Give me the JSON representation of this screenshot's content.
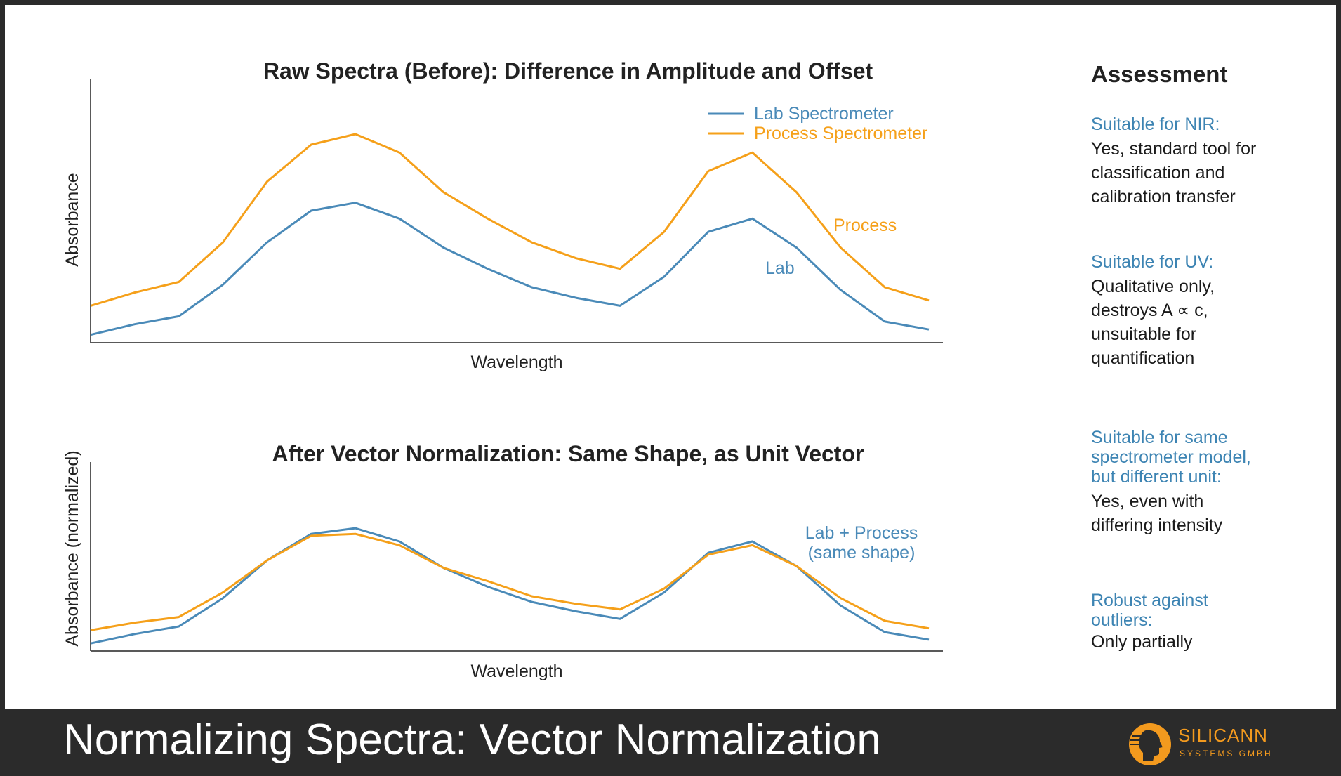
{
  "colors": {
    "lab": "#4a8ab8",
    "process": "#f5a01a",
    "assessment_question": "#3d84b3",
    "footer_background": "#2b2b2b",
    "logo": "#f39a1e"
  },
  "chart_data": [
    {
      "type": "line",
      "title": "Raw Spectra (Before): Difference in Amplitude and Offset",
      "xlabel": "Wavelength",
      "ylabel": "Absorbance",
      "ylim": [
        0,
        100
      ],
      "grid": false,
      "legend_placement": "top-right",
      "x": [
        0,
        1,
        2,
        3,
        4,
        5,
        6,
        7,
        8,
        9,
        10,
        11,
        12,
        13,
        14,
        15,
        16,
        17,
        18,
        19
      ],
      "series": [
        {
          "name": "Lab Spectrometer",
          "values": [
            3,
            7,
            10,
            22,
            38,
            50,
            53,
            47,
            36,
            28,
            21,
            17,
            14,
            25,
            42,
            47,
            36,
            20,
            8,
            5
          ]
        },
        {
          "name": "Process Spectrometer",
          "values": [
            14,
            19,
            23,
            38,
            61,
            75,
            79,
            72,
            57,
            47,
            38,
            32,
            28,
            42,
            65,
            72,
            57,
            36,
            21,
            16
          ]
        }
      ],
      "annotations": [
        {
          "text": "Process",
          "series": "Process Spectrometer"
        },
        {
          "text": "Lab",
          "series": "Lab Spectrometer"
        }
      ]
    },
    {
      "type": "line",
      "title": "After Vector Normalization: Same Shape, as Unit Vector",
      "xlabel": "Wavelength",
      "ylabel": "Absorbance (normalized)",
      "ylim": [
        0,
        100
      ],
      "grid": false,
      "x": [
        0,
        1,
        2,
        3,
        4,
        5,
        6,
        7,
        8,
        9,
        10,
        11,
        12,
        13,
        14,
        15,
        16,
        17,
        18,
        19
      ],
      "series": [
        {
          "name": "Lab",
          "values": [
            4,
            9,
            13,
            28,
            48,
            62,
            65,
            58,
            44,
            34,
            26,
            21,
            17,
            31,
            52,
            58,
            45,
            24,
            10,
            6
          ]
        },
        {
          "name": "Process",
          "values": [
            11,
            15,
            18,
            31,
            48,
            61,
            62,
            56,
            44,
            37,
            29,
            25,
            22,
            33,
            51,
            56,
            45,
            28,
            16,
            12
          ]
        }
      ],
      "annotations": [
        {
          "text": "Lab + Process",
          "series": "both"
        },
        {
          "text": "(same shape)",
          "series": "both"
        }
      ]
    }
  ],
  "assessment": {
    "heading": "Assessment",
    "items": [
      {
        "question": "Suitable for NIR:",
        "answer": [
          "Yes, standard tool for",
          "classification and",
          "calibration transfer"
        ]
      },
      {
        "question": "Suitable for UV:",
        "answer": [
          "Qualitative only,",
          "destroys A ∝ c,",
          "unsuitable for",
          "quantification"
        ]
      },
      {
        "question": "Suitable for same spectrometer model, but different unit:",
        "question_lines": [
          "Suitable for same",
          "spectrometer model,",
          "but different unit:"
        ],
        "answer": [
          "Yes, even with",
          "differing intensity"
        ]
      },
      {
        "question": "Robust against outliers:",
        "question_lines": [
          "Robust against",
          "outliers:"
        ],
        "answer": [
          "Only partially"
        ]
      }
    ]
  },
  "footer": {
    "title": "Normalizing Spectra: Vector Normalization"
  },
  "logo": {
    "name": "SILICANN",
    "tagline": "SYSTEMS GMBH"
  }
}
